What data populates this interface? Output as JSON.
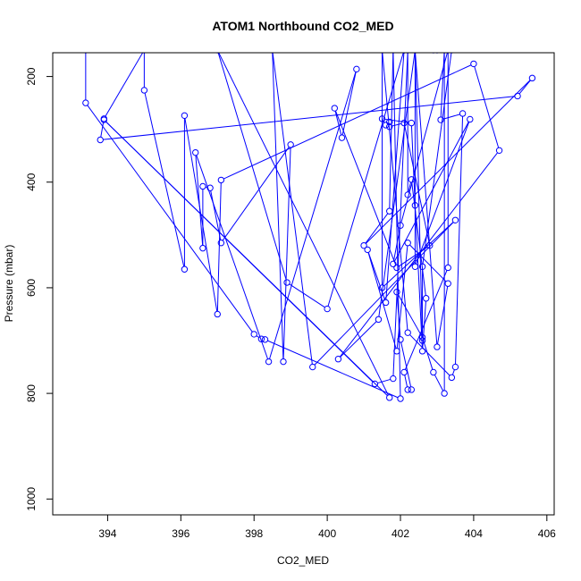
{
  "chart_data": {
    "type": "line",
    "title": "ATOM1 Northbound CO2_MED",
    "xlabel": "CO2_MED",
    "ylabel": "Pressure (mbar)",
    "xlim": [
      392.5,
      406.2
    ],
    "ylim": [
      1030,
      155
    ],
    "y_axis_reversed": true,
    "x_ticks": [
      394,
      396,
      398,
      400,
      402,
      404,
      406
    ],
    "y_ticks": [
      200,
      400,
      600,
      800,
      1000
    ],
    "grid": false,
    "series_color": "#0000ff",
    "markers": "open-circle",
    "series": [
      {
        "points": [
          [
            393.4,
            150
          ],
          [
            393.4,
            250
          ],
          [
            398.0,
            688
          ],
          [
            398.2,
            697
          ],
          [
            398.3,
            698
          ],
          [
            402.0,
            810
          ],
          [
            401.8,
            150
          ],
          [
            401.7,
            455
          ],
          [
            401.0,
            520
          ],
          [
            405.6,
            203
          ],
          [
            405.2,
            237
          ],
          [
            393.8,
            320
          ],
          [
            393.9,
            280
          ],
          [
            395.0,
            150
          ],
          [
            395.0,
            226
          ],
          [
            396.1,
            565
          ],
          [
            396.1,
            274
          ],
          [
            397.0,
            650
          ],
          [
            397.1,
            396
          ],
          [
            404.0,
            176
          ],
          [
            404.7,
            340
          ],
          [
            400.3,
            735
          ],
          [
            401.4,
            660
          ],
          [
            402.4,
            150
          ],
          [
            402.4,
            560
          ],
          [
            403.9,
            281
          ],
          [
            401.8,
            555
          ],
          [
            402.0,
            482
          ],
          [
            403.3,
            150
          ],
          [
            403.3,
            562
          ],
          [
            402.1,
            760
          ],
          [
            402.2,
            793
          ],
          [
            402.3,
            793
          ],
          [
            402.0,
            698
          ],
          [
            401.9,
            608
          ],
          [
            402.6,
            694
          ],
          [
            402.9,
            760
          ],
          [
            403.2,
            800
          ],
          [
            403.2,
            150
          ],
          [
            403.1,
            282
          ],
          [
            403.7,
            270
          ],
          [
            403.5,
            750
          ],
          [
            403.4,
            770
          ],
          [
            402.2,
            685
          ],
          [
            401.5,
            150
          ],
          [
            401.5,
            600
          ],
          [
            403.5,
            472
          ],
          [
            399.6,
            750
          ],
          [
            398.5,
            150
          ],
          [
            398.8,
            740
          ],
          [
            399.0,
            329
          ],
          [
            397.1,
            515
          ],
          [
            396.8,
            411
          ],
          [
            396.6,
            408
          ],
          [
            396.6,
            525
          ],
          [
            396.4,
            344
          ],
          [
            398.4,
            740
          ],
          [
            400.8,
            186
          ],
          [
            400.4,
            316
          ],
          [
            400.2,
            260
          ],
          [
            401.9,
            562
          ],
          [
            402.8,
            520
          ],
          [
            402.1,
            288
          ],
          [
            401.7,
            295
          ],
          [
            401.7,
            286
          ],
          [
            401.6,
            292
          ],
          [
            401.5,
            280
          ],
          [
            402.3,
            288
          ],
          [
            402.4,
            444
          ],
          [
            402.6,
            720
          ],
          [
            402.7,
            620
          ],
          [
            402.3,
            395
          ],
          [
            402.2,
            424
          ],
          [
            402.2,
            150
          ],
          [
            401.8,
            772
          ],
          [
            401.3,
            782
          ],
          [
            393.9,
            282
          ],
          [
            401.7,
            808
          ],
          [
            397.0,
            150
          ],
          [
            398.9,
            590
          ],
          [
            400.0,
            640
          ],
          [
            402.1,
            150
          ],
          [
            401.6,
            628
          ],
          [
            401.1,
            528
          ],
          [
            401.9,
            720
          ],
          [
            402.2,
            515
          ],
          [
            403.3,
            592
          ],
          [
            403.0,
            712
          ],
          [
            402.4,
            150
          ],
          [
            402.6,
            700
          ],
          [
            402.6,
            560
          ],
          [
            403.4,
            150
          ],
          [
            402.9,
            150
          ],
          [
            403.0,
            150
          ],
          [
            402.1,
            150
          ]
        ]
      }
    ]
  }
}
